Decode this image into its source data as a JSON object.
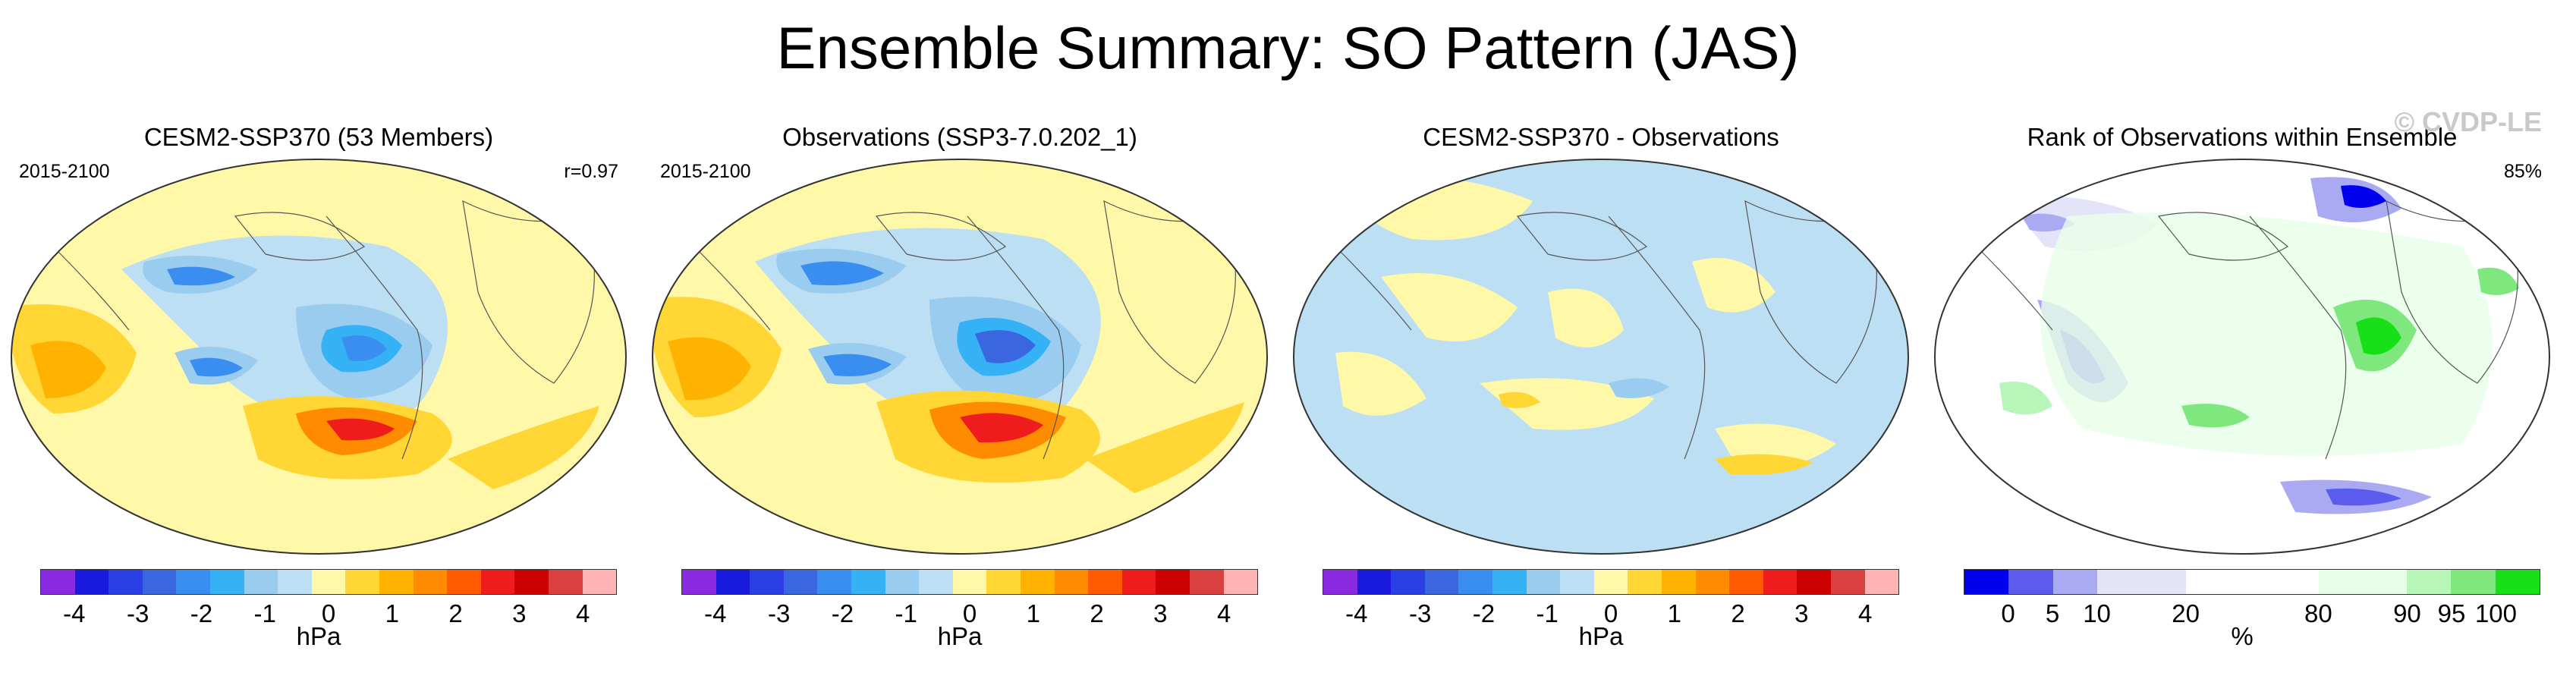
{
  "title": "Ensemble Summary: SO Pattern (JAS)",
  "watermark": "© CVDP-LE",
  "panels": [
    {
      "title": "CESM2-SSP370 (53 Members)",
      "left_label": "2015-2100",
      "right_label": "r=0.97",
      "unit": "hPa"
    },
    {
      "title": "Observations (SSP3-7.0.202_1)",
      "left_label": "2015-2100",
      "right_label": "",
      "unit": "hPa"
    },
    {
      "title": "CESM2-SSP370 - Observations",
      "left_label": "",
      "right_label": "",
      "unit": "hPa"
    },
    {
      "title": "Rank of Observations within Ensemble",
      "left_label": "",
      "right_label": "85%",
      "unit": "%"
    }
  ],
  "colorbars": {
    "hpa": {
      "colors": [
        "#8a2be2",
        "#1a1adc",
        "#2a3fe6",
        "#3a66e0",
        "#3a8ef0",
        "#35b2f5",
        "#99ccee",
        "#bcdff3",
        "#fff8a8",
        "#ffd633",
        "#ffb300",
        "#ff8c00",
        "#ff5a00",
        "#ee1c1c",
        "#cc0000",
        "#d94040",
        "#ffb3b3"
      ],
      "ticks": [
        "-4",
        "-3",
        "-2",
        "-1",
        "0",
        "1",
        "2",
        "3",
        "4"
      ]
    },
    "rank": {
      "colors": [
        "#0000ee",
        "#5b5bee",
        "#aaaaf2",
        "#e4e4f8",
        "#e4e4f8",
        "#ffffff",
        "#ffffff",
        "#ffffff",
        "#e7ffe7",
        "#e7ffe7",
        "#b8f5b8",
        "#7ee87e",
        "#18e018"
      ],
      "ticks": [
        "0",
        "5",
        "10",
        "20",
        "80",
        "90",
        "95",
        "100"
      ]
    }
  }
}
